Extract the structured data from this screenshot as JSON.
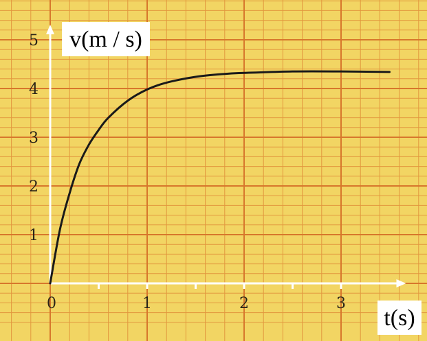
{
  "chart_data": {
    "type": "line",
    "xlabel": "t(s)",
    "ylabel": "v(m / s)",
    "xlim": [
      0,
      3.5
    ],
    "ylim": [
      0,
      5
    ],
    "x_ticks": [
      "0",
      "1",
      "2",
      "3"
    ],
    "y_ticks": [
      "1",
      "2",
      "3",
      "4",
      "5"
    ],
    "grid": true,
    "series": [
      {
        "x": [
          0,
          0.1,
          0.2,
          0.3,
          0.4,
          0.5,
          0.6,
          0.8,
          1.0,
          1.2,
          1.5,
          1.8,
          2.0,
          2.5,
          3.0,
          3.5
        ],
        "y": [
          0,
          1.1,
          1.85,
          2.45,
          2.85,
          3.15,
          3.4,
          3.75,
          3.98,
          4.12,
          4.24,
          4.3,
          4.32,
          4.35,
          4.35,
          4.34
        ]
      }
    ],
    "colors": {
      "background": "#f2d563",
      "grid_minor": "#e2973e",
      "grid_major": "#d7772c",
      "curve": "#1a1a1a",
      "axis": "#ffffff"
    }
  }
}
